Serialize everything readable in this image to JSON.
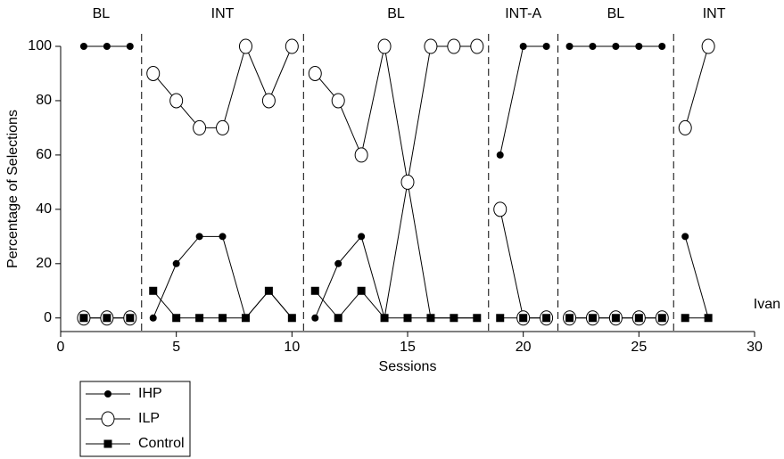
{
  "chart_data": {
    "type": "line",
    "xlabel": "Sessions",
    "ylabel": "Percentage of Selections",
    "annotation": "Ivan",
    "x": [
      1,
      2,
      3,
      4,
      5,
      6,
      7,
      8,
      9,
      10,
      11,
      12,
      13,
      14,
      15,
      16,
      17,
      18,
      19,
      20,
      21,
      22,
      23,
      24,
      25,
      26,
      27,
      28
    ],
    "phase_lines": [
      3.5,
      10.5,
      18.5,
      21.5,
      26.5
    ],
    "phases": [
      "BL",
      "INT",
      "BL",
      "INT-A",
      "BL",
      "INT"
    ],
    "series": [
      {
        "name": "IHP",
        "color": "#000000",
        "marker": "filled-circle",
        "values": [
          100,
          100,
          100,
          0,
          20,
          30,
          30,
          0,
          10,
          0,
          0,
          20,
          30,
          0,
          50,
          0,
          0,
          0,
          60,
          100,
          100,
          100,
          100,
          100,
          100,
          100,
          30,
          0
        ]
      },
      {
        "name": "ILP",
        "color": "#000000",
        "marker": "open-circle",
        "values": [
          0,
          0,
          0,
          90,
          80,
          70,
          70,
          100,
          80,
          100,
          90,
          80,
          60,
          100,
          50,
          100,
          100,
          100,
          40,
          0,
          0,
          0,
          0,
          0,
          0,
          0,
          70,
          100
        ]
      },
      {
        "name": "Control",
        "color": "#000000",
        "marker": "square",
        "values": [
          0,
          0,
          0,
          10,
          0,
          0,
          0,
          0,
          10,
          0,
          10,
          0,
          10,
          0,
          0,
          0,
          0,
          0,
          0,
          0,
          0,
          0,
          0,
          0,
          0,
          0,
          0,
          0
        ]
      }
    ],
    "xlim": [
      0,
      30
    ],
    "xticks": [
      0,
      5,
      10,
      15,
      20,
      25,
      30
    ],
    "ylim": [
      -5,
      100
    ],
    "yticks": [
      0,
      20,
      40,
      60,
      80,
      100
    ]
  }
}
